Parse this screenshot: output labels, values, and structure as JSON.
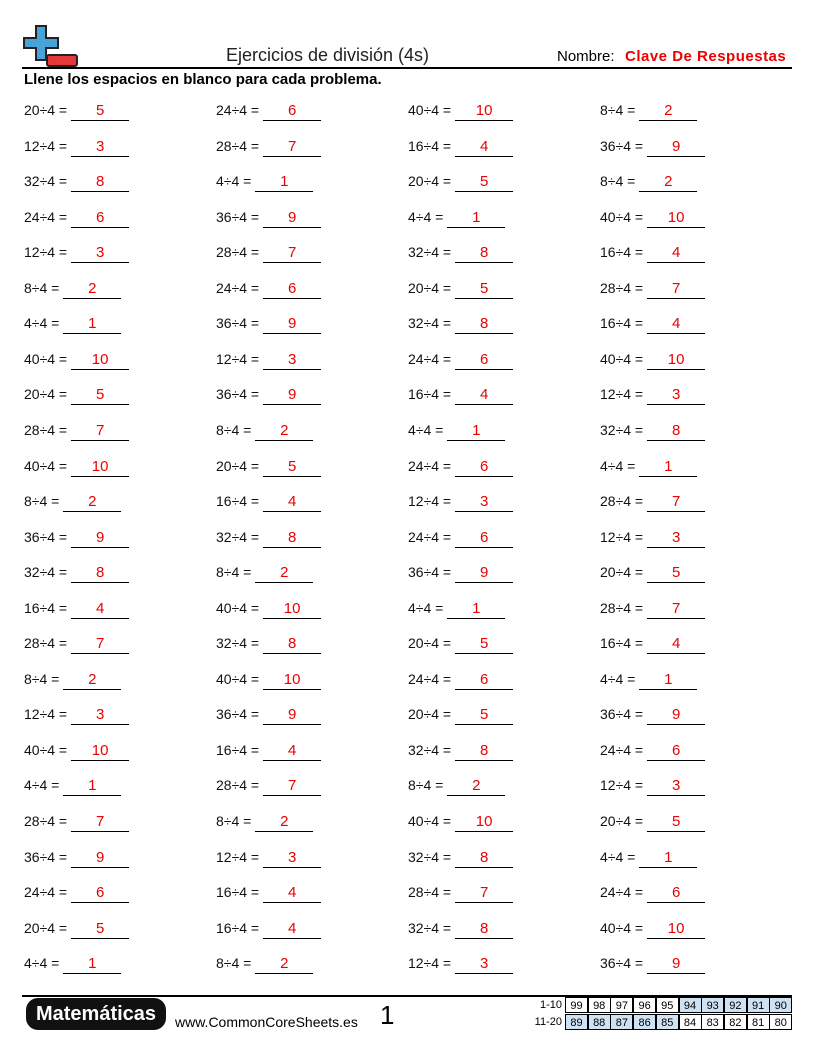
{
  "header": {
    "title": "Ejercicios de división (4s)",
    "name_label": "Nombre:",
    "name_value": "Clave De Respuestas"
  },
  "instructions": "Llene los espacios en blanco para cada problema.",
  "problems": [
    [
      [
        "20÷4 =",
        "5"
      ],
      [
        "24÷4 =",
        "6"
      ],
      [
        "40÷4 =",
        "10"
      ],
      [
        "8÷4 =",
        "2"
      ]
    ],
    [
      [
        "12÷4 =",
        "3"
      ],
      [
        "28÷4 =",
        "7"
      ],
      [
        "16÷4 =",
        "4"
      ],
      [
        "36÷4 =",
        "9"
      ]
    ],
    [
      [
        "32÷4 =",
        "8"
      ],
      [
        "4÷4 =",
        "1"
      ],
      [
        "20÷4 =",
        "5"
      ],
      [
        "8÷4 =",
        "2"
      ]
    ],
    [
      [
        "24÷4 =",
        "6"
      ],
      [
        "36÷4 =",
        "9"
      ],
      [
        "4÷4 =",
        "1"
      ],
      [
        "40÷4 =",
        "10"
      ]
    ],
    [
      [
        "12÷4 =",
        "3"
      ],
      [
        "28÷4 =",
        "7"
      ],
      [
        "32÷4 =",
        "8"
      ],
      [
        "16÷4 =",
        "4"
      ]
    ],
    [
      [
        "8÷4 =",
        "2"
      ],
      [
        "24÷4 =",
        "6"
      ],
      [
        "20÷4 =",
        "5"
      ],
      [
        "28÷4 =",
        "7"
      ]
    ],
    [
      [
        "4÷4 =",
        "1"
      ],
      [
        "36÷4 =",
        "9"
      ],
      [
        "32÷4 =",
        "8"
      ],
      [
        "16÷4 =",
        "4"
      ]
    ],
    [
      [
        "40÷4 =",
        "10"
      ],
      [
        "12÷4 =",
        "3"
      ],
      [
        "24÷4 =",
        "6"
      ],
      [
        "40÷4 =",
        "10"
      ]
    ],
    [
      [
        "20÷4 =",
        "5"
      ],
      [
        "36÷4 =",
        "9"
      ],
      [
        "16÷4 =",
        "4"
      ],
      [
        "12÷4 =",
        "3"
      ]
    ],
    [
      [
        "28÷4 =",
        "7"
      ],
      [
        "8÷4 =",
        "2"
      ],
      [
        "4÷4 =",
        "1"
      ],
      [
        "32÷4 =",
        "8"
      ]
    ],
    [
      [
        "40÷4 =",
        "10"
      ],
      [
        "20÷4 =",
        "5"
      ],
      [
        "24÷4 =",
        "6"
      ],
      [
        "4÷4 =",
        "1"
      ]
    ],
    [
      [
        "8÷4 =",
        "2"
      ],
      [
        "16÷4 =",
        "4"
      ],
      [
        "12÷4 =",
        "3"
      ],
      [
        "28÷4 =",
        "7"
      ]
    ],
    [
      [
        "36÷4 =",
        "9"
      ],
      [
        "32÷4 =",
        "8"
      ],
      [
        "24÷4 =",
        "6"
      ],
      [
        "12÷4 =",
        "3"
      ]
    ],
    [
      [
        "32÷4 =",
        "8"
      ],
      [
        "8÷4 =",
        "2"
      ],
      [
        "36÷4 =",
        "9"
      ],
      [
        "20÷4 =",
        "5"
      ]
    ],
    [
      [
        "16÷4 =",
        "4"
      ],
      [
        "40÷4 =",
        "10"
      ],
      [
        "4÷4 =",
        "1"
      ],
      [
        "28÷4 =",
        "7"
      ]
    ],
    [
      [
        "28÷4 =",
        "7"
      ],
      [
        "32÷4 =",
        "8"
      ],
      [
        "20÷4 =",
        "5"
      ],
      [
        "16÷4 =",
        "4"
      ]
    ],
    [
      [
        "8÷4 =",
        "2"
      ],
      [
        "40÷4 =",
        "10"
      ],
      [
        "24÷4 =",
        "6"
      ],
      [
        "4÷4 =",
        "1"
      ]
    ],
    [
      [
        "12÷4 =",
        "3"
      ],
      [
        "36÷4 =",
        "9"
      ],
      [
        "20÷4 =",
        "5"
      ],
      [
        "36÷4 =",
        "9"
      ]
    ],
    [
      [
        "40÷4 =",
        "10"
      ],
      [
        "16÷4 =",
        "4"
      ],
      [
        "32÷4 =",
        "8"
      ],
      [
        "24÷4 =",
        "6"
      ]
    ],
    [
      [
        "4÷4 =",
        "1"
      ],
      [
        "28÷4 =",
        "7"
      ],
      [
        "8÷4 =",
        "2"
      ],
      [
        "12÷4 =",
        "3"
      ]
    ],
    [
      [
        "28÷4 =",
        "7"
      ],
      [
        "8÷4 =",
        "2"
      ],
      [
        "40÷4 =",
        "10"
      ],
      [
        "20÷4 =",
        "5"
      ]
    ],
    [
      [
        "36÷4 =",
        "9"
      ],
      [
        "12÷4 =",
        "3"
      ],
      [
        "32÷4 =",
        "8"
      ],
      [
        "4÷4 =",
        "1"
      ]
    ],
    [
      [
        "24÷4 =",
        "6"
      ],
      [
        "16÷4 =",
        "4"
      ],
      [
        "28÷4 =",
        "7"
      ],
      [
        "24÷4 =",
        "6"
      ]
    ],
    [
      [
        "20÷4 =",
        "5"
      ],
      [
        "16÷4 =",
        "4"
      ],
      [
        "32÷4 =",
        "8"
      ],
      [
        "40÷4 =",
        "10"
      ]
    ],
    [
      [
        "4÷4 =",
        "1"
      ],
      [
        "8÷4 =",
        "2"
      ],
      [
        "12÷4 =",
        "3"
      ],
      [
        "36÷4 =",
        "9"
      ]
    ]
  ],
  "footer": {
    "brand": "Matemáticas",
    "url": "www.CommonCoreSheets.es",
    "page": "1",
    "score_table": [
      {
        "label": "1-10",
        "scores": [
          99,
          98,
          97,
          96,
          95,
          94,
          93,
          92,
          91,
          90
        ]
      },
      {
        "label": "11-20",
        "scores": [
          89,
          88,
          87,
          86,
          85,
          84,
          83,
          82,
          81,
          80
        ]
      }
    ]
  }
}
